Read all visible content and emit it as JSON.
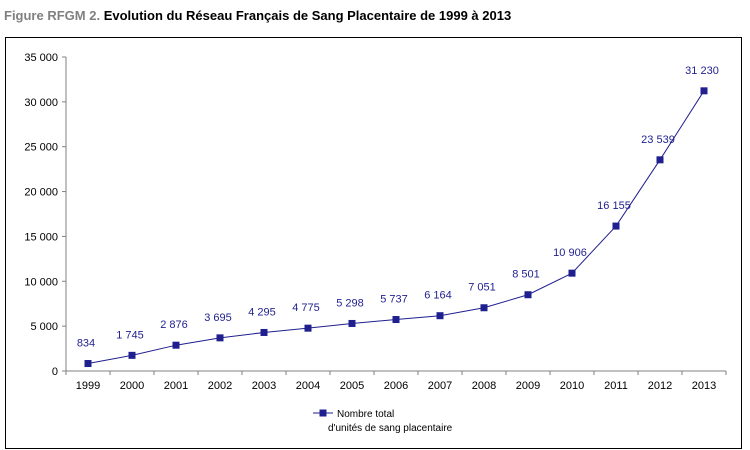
{
  "title": {
    "prefix": "Figure RFGM 2.",
    "text": "Evolution du Réseau Français de Sang Placentaire de 1999 à 2013"
  },
  "chart_data": {
    "type": "line",
    "categories": [
      "1999",
      "2000",
      "2001",
      "2002",
      "2003",
      "2004",
      "2005",
      "2006",
      "2007",
      "2008",
      "2009",
      "2010",
      "2011",
      "2012",
      "2013"
    ],
    "series": [
      {
        "name": "Nombre total d'unités de sang placentaire",
        "values": [
          834,
          1745,
          2876,
          3695,
          4295,
          4775,
          5298,
          5737,
          6164,
          7051,
          8501,
          10906,
          16155,
          23539,
          31230
        ],
        "labels": [
          "834",
          "1 745",
          "2 876",
          "3 695",
          "4 295",
          "4 775",
          "5 298",
          "5 737",
          "6 164",
          "7 051",
          "8 501",
          "10 906",
          "16 155",
          "23 539",
          "31 230"
        ]
      }
    ],
    "ylim": [
      0,
      35000
    ],
    "yticks": [
      0,
      5000,
      10000,
      15000,
      20000,
      25000,
      30000,
      35000
    ],
    "ytick_labels": [
      "0",
      "5 000",
      "10 000",
      "15 000",
      "20 000",
      "25 000",
      "30 000",
      "35 000"
    ],
    "grid": false,
    "legend": {
      "placement": "bottom-center",
      "line1": "Nombre total",
      "line2": "d'unités de sang placentaire"
    },
    "colors": {
      "series": "#1f1f8f",
      "axis": "#808080"
    }
  }
}
